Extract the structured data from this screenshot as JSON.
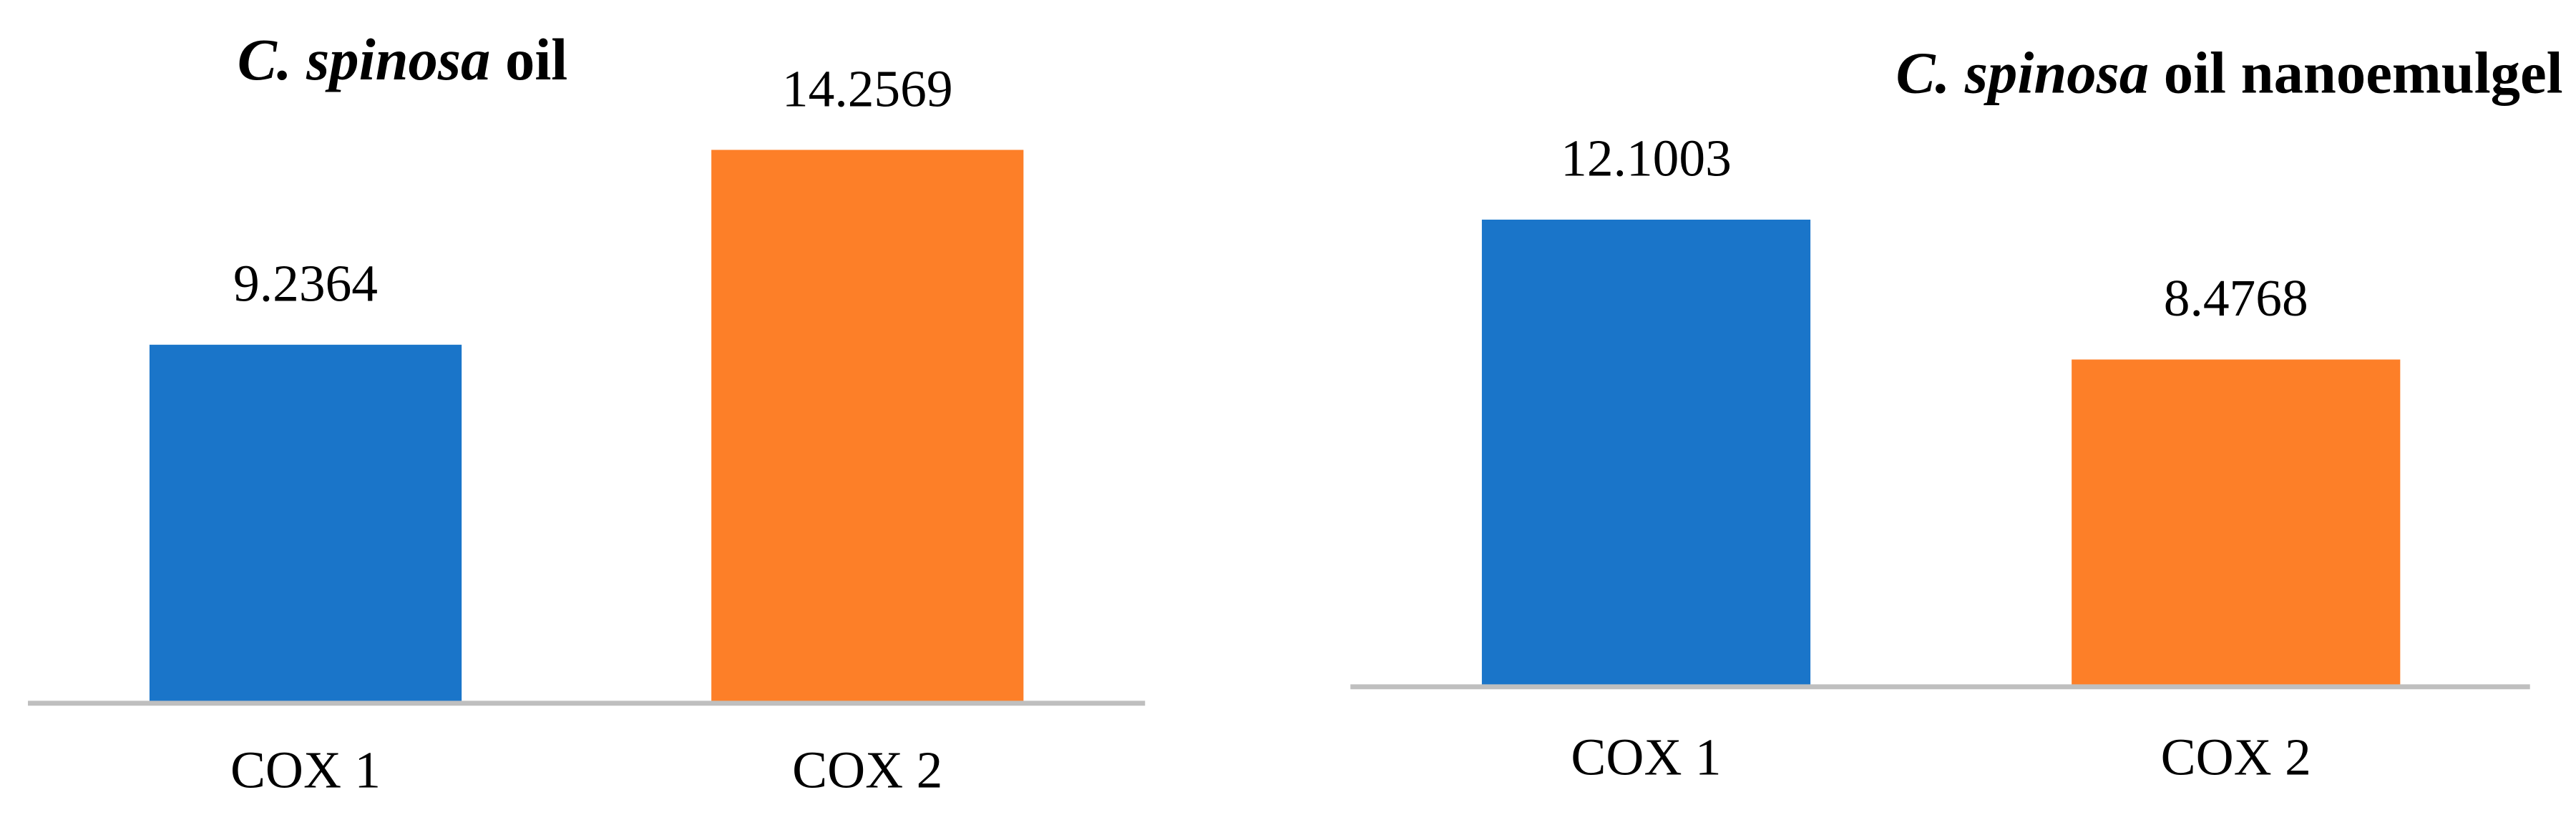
{
  "chart_data": [
    {
      "type": "bar",
      "title": [
        "C. spinosa",
        "oil"
      ],
      "categories": [
        "COX 1",
        "COX 2"
      ],
      "values": [
        9.2364,
        14.2569
      ],
      "value_labels": [
        "9.2364",
        "14.2569"
      ],
      "colors": [
        "#1a75c9",
        "#fd7f28"
      ],
      "ylim": [
        0,
        16
      ]
    },
    {
      "type": "bar",
      "title": [
        "C. spinosa",
        "oil nanoemulgel"
      ],
      "categories": [
        "COX 1",
        "COX 2"
      ],
      "values": [
        12.1003,
        8.4768
      ],
      "value_labels": [
        "12.1003",
        "8.4768"
      ],
      "colors": [
        "#1a75c9",
        "#fd7f28"
      ],
      "ylim": [
        0,
        16
      ]
    }
  ]
}
